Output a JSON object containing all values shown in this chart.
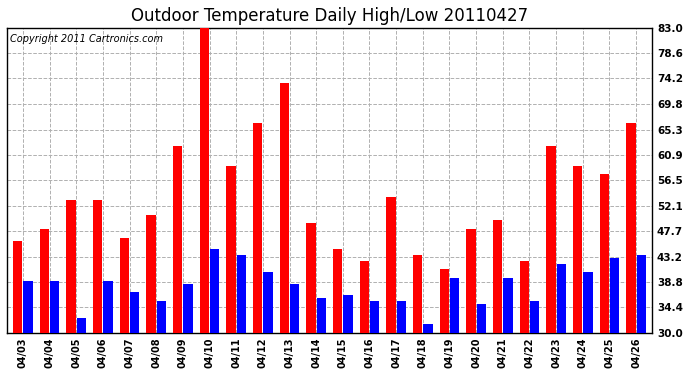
{
  "title": "Outdoor Temperature Daily High/Low 20110427",
  "copyright": "Copyright 2011 Cartronics.com",
  "dates": [
    "04/03",
    "04/04",
    "04/05",
    "04/06",
    "04/07",
    "04/08",
    "04/09",
    "04/10",
    "04/11",
    "04/12",
    "04/13",
    "04/14",
    "04/15",
    "04/16",
    "04/17",
    "04/18",
    "04/19",
    "04/20",
    "04/21",
    "04/22",
    "04/23",
    "04/24",
    "04/25",
    "04/26"
  ],
  "highs": [
    46.0,
    48.0,
    53.0,
    53.0,
    46.5,
    50.5,
    62.5,
    83.0,
    59.0,
    66.5,
    73.5,
    49.0,
    44.5,
    42.5,
    53.5,
    43.5,
    41.0,
    48.0,
    49.5,
    42.5,
    62.5,
    59.0,
    57.5,
    66.5
  ],
  "lows": [
    39.0,
    39.0,
    32.5,
    39.0,
    37.0,
    35.5,
    38.5,
    44.5,
    43.5,
    40.5,
    38.5,
    36.0,
    36.5,
    35.5,
    35.5,
    31.5,
    39.5,
    35.0,
    39.5,
    35.5,
    42.0,
    40.5,
    43.0,
    43.5
  ],
  "high_color": "#ff0000",
  "low_color": "#0000ff",
  "ymin": 30.0,
  "ymax": 83.0,
  "yticks": [
    30.0,
    34.4,
    38.8,
    43.2,
    47.7,
    52.1,
    56.5,
    60.9,
    65.3,
    69.8,
    74.2,
    78.6,
    83.0
  ],
  "ytick_labels": [
    "30.0",
    "34.4",
    "38.8",
    "43.2",
    "47.7",
    "52.1",
    "56.5",
    "60.9",
    "65.3",
    "69.8",
    "74.2",
    "78.6",
    "83.0"
  ],
  "background_color": "#ffffff",
  "grid_color": "#b0b0b0",
  "title_fontsize": 12,
  "copyright_fontsize": 7.0,
  "bar_width": 0.35,
  "bar_gap": 0.04
}
